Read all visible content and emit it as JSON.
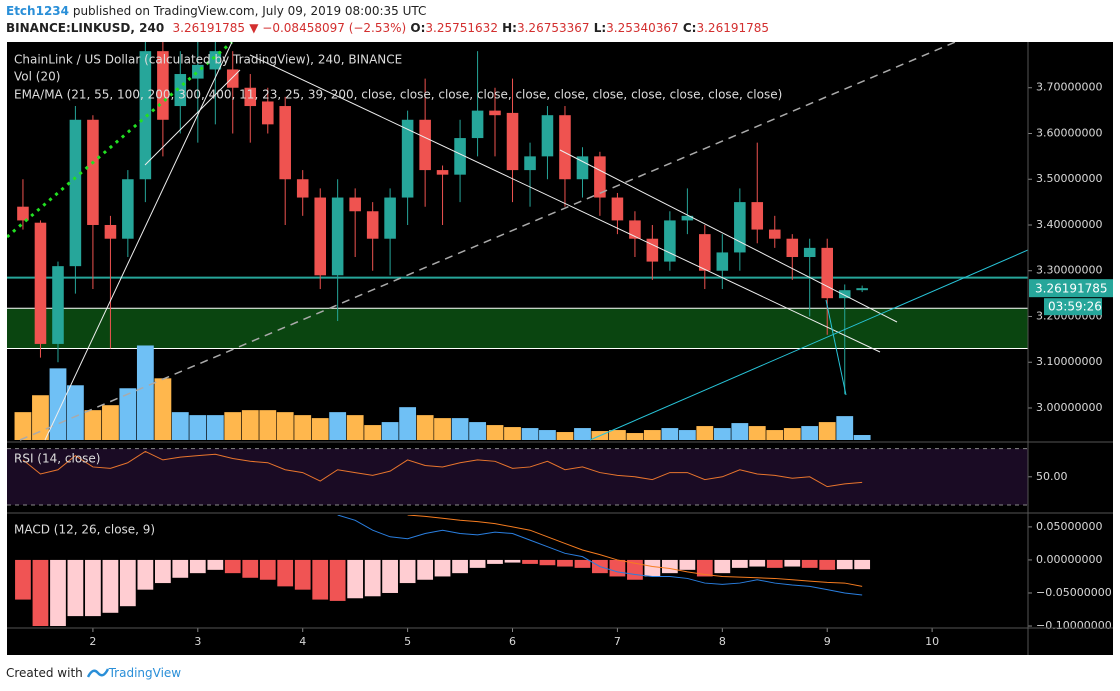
{
  "header": {
    "user": "Etch1234",
    "published": "published on TradingView.com, July 09, 2019 08:00:35 UTC",
    "symbol": "BINANCE:LINKUSD, 240",
    "last": "3.26191785",
    "change": "▼ −0.08458097 (−2.53%)",
    "ohlc": [
      {
        "label": "O:",
        "value": "3.25751632"
      },
      {
        "label": "H:",
        "value": "3.26753367"
      },
      {
        "label": "L:",
        "value": "3.25340367"
      },
      {
        "label": "C:",
        "value": "3.26191785"
      }
    ],
    "timer": "03:59:26"
  },
  "footer": {
    "created": "Created with",
    "brand": "TradingView"
  },
  "chart_data": [
    {
      "type": "candlestick",
      "title": "ChainLink / US Dollar (calculated by TradingView), 240, BINANCE",
      "volume_label": "Vol (20)",
      "ma_label": "EMA/MA (21, 55, 100, 200, 300, 400, 11, 23, 25, 39, 200, close, close, close, close, close, close, close, close, close, close, close)",
      "x": [
        1.333,
        1.5,
        1.667,
        1.833,
        2,
        2.167,
        2.333,
        2.5,
        2.667,
        2.833,
        3,
        3.167,
        3.333,
        3.5,
        3.667,
        3.833,
        4,
        4.167,
        4.333,
        4.5,
        4.667,
        4.833,
        5,
        5.167,
        5.333,
        5.5,
        5.667,
        5.833,
        6,
        6.167,
        6.333,
        6.5,
        6.667,
        6.833,
        7,
        7.167,
        7.333,
        7.5,
        7.667,
        7.833,
        8,
        8.167,
        8.333,
        8.5,
        8.667,
        8.833,
        9,
        9.167,
        9.333
      ],
      "open": [
        3.44,
        3.405,
        3.14,
        3.31,
        3.63,
        3.4,
        3.37,
        3.5,
        3.78,
        3.66,
        3.72,
        3.74,
        3.74,
        3.7,
        3.67,
        3.66,
        3.5,
        3.46,
        3.29,
        3.46,
        3.43,
        3.37,
        3.46,
        3.63,
        3.52,
        3.51,
        3.59,
        3.65,
        3.645,
        3.52,
        3.55,
        3.64,
        3.5,
        3.55,
        3.46,
        3.41,
        3.37,
        3.32,
        3.41,
        3.38,
        3.3,
        3.34,
        3.45,
        3.39,
        3.37,
        3.33,
        3.35,
        3.24,
        3.2575
      ],
      "high": [
        3.5,
        3.41,
        3.32,
        3.66,
        3.64,
        3.42,
        3.52,
        3.8,
        3.8,
        3.78,
        3.8,
        3.8,
        3.78,
        3.73,
        3.7,
        3.68,
        3.52,
        3.48,
        3.5,
        3.48,
        3.45,
        3.48,
        3.65,
        3.72,
        3.53,
        3.63,
        3.78,
        3.7,
        3.72,
        3.58,
        3.66,
        3.66,
        3.57,
        3.56,
        3.47,
        3.43,
        3.4,
        3.43,
        3.48,
        3.4,
        3.38,
        3.48,
        3.58,
        3.42,
        3.38,
        3.37,
        3.37,
        3.27,
        3.2675
      ],
      "low": [
        3.39,
        3.11,
        3.1,
        3.25,
        3.26,
        3.13,
        3.33,
        3.45,
        3.55,
        3.6,
        3.58,
        3.62,
        3.6,
        3.58,
        3.6,
        3.4,
        3.42,
        3.26,
        3.19,
        3.33,
        3.3,
        3.29,
        3.4,
        3.44,
        3.4,
        3.45,
        3.55,
        3.55,
        3.45,
        3.44,
        3.5,
        3.44,
        3.46,
        3.42,
        3.38,
        3.33,
        3.28,
        3.3,
        3.38,
        3.26,
        3.26,
        3.3,
        3.36,
        3.35,
        3.28,
        3.2,
        3.16,
        3.03,
        3.2534
      ],
      "close": [
        3.41,
        3.14,
        3.31,
        3.63,
        3.4,
        3.37,
        3.5,
        3.78,
        3.63,
        3.73,
        3.75,
        3.78,
        3.7,
        3.66,
        3.62,
        3.5,
        3.46,
        3.29,
        3.46,
        3.43,
        3.37,
        3.46,
        3.63,
        3.52,
        3.51,
        3.59,
        3.65,
        3.64,
        3.52,
        3.55,
        3.64,
        3.5,
        3.55,
        3.46,
        3.41,
        3.37,
        3.32,
        3.41,
        3.42,
        3.3,
        3.34,
        3.45,
        3.39,
        3.37,
        3.33,
        3.35,
        3.24,
        3.2575,
        3.2619
      ],
      "up_color": "#26a69a",
      "down_color": "#ef5350",
      "volume": [
        28,
        45,
        72,
        55,
        30,
        35,
        52,
        95,
        62,
        28,
        25,
        25,
        28,
        30,
        30,
        28,
        25,
        22,
        28,
        25,
        15,
        18,
        33,
        25,
        22,
        22,
        18,
        15,
        13,
        12,
        10,
        8,
        12,
        9,
        10,
        7,
        10,
        12,
        10,
        14,
        12,
        17,
        14,
        10,
        12,
        14,
        18,
        24,
        5
      ],
      "volume_lim": [
        0,
        400
      ],
      "volume_up_color": "#6fc0f5",
      "volume_down_color": "#ffb74d",
      "levels": [
        {
          "value": 3.285,
          "color": "#26a69a"
        },
        {
          "value": 3.218,
          "color": "#ffffff"
        },
        {
          "value": 3.13,
          "color": "#ffffff"
        }
      ],
      "zone": {
        "range": [
          3.13,
          3.218
        ],
        "color": "#0a4510"
      },
      "xlim": [
        1.181,
        10.914
      ],
      "xticks": [
        2,
        3,
        4,
        5,
        6,
        7,
        8,
        9,
        10
      ],
      "ylim": [
        2.93,
        3.8
      ],
      "yticks": [
        {
          "value": 3.0,
          "label": "3.00000000"
        },
        {
          "value": 3.1,
          "label": "3.10000000"
        },
        {
          "value": 3.2,
          "label": "3.20000000"
        },
        {
          "value": 3.3,
          "label": "3.30000000"
        },
        {
          "value": 3.4,
          "label": "3.40000000"
        },
        {
          "value": 3.5,
          "label": "3.50000000"
        },
        {
          "value": 3.6,
          "label": "3.60000000"
        },
        {
          "value": 3.7,
          "label": "3.70000000"
        }
      ]
    },
    {
      "type": "line",
      "title": "RSI (14, close)",
      "values": [
        62,
        52,
        55,
        65,
        57,
        56,
        60,
        68,
        62,
        64,
        65,
        66,
        63,
        61,
        60,
        55,
        53,
        47,
        55,
        53,
        51,
        54,
        62,
        58,
        57,
        60,
        62,
        61,
        56,
        57,
        61,
        55,
        57,
        53,
        51,
        50,
        48,
        53,
        53,
        48,
        50,
        55,
        52,
        51,
        49,
        50,
        43,
        45,
        46
      ],
      "color": "#e8752d",
      "background": "#1a0b24",
      "bands": [
        30,
        70
      ],
      "ylim": [
        25,
        74
      ],
      "yticks": [
        {
          "value": 50,
          "label": "50.00"
        }
      ]
    },
    {
      "type": "macd",
      "title": "MACD (12, 26, close, 9)",
      "histogram": [
        -0.06,
        -0.1,
        -0.1,
        -0.085,
        -0.085,
        -0.08,
        -0.07,
        -0.045,
        -0.035,
        -0.027,
        -0.02,
        -0.015,
        -0.02,
        -0.027,
        -0.03,
        -0.04,
        -0.045,
        -0.06,
        -0.062,
        -0.058,
        -0.055,
        -0.05,
        -0.035,
        -0.03,
        -0.025,
        -0.02,
        -0.012,
        -0.006,
        -0.004,
        -0.006,
        -0.008,
        -0.01,
        -0.012,
        -0.02,
        -0.025,
        -0.03,
        -0.025,
        -0.02,
        -0.015,
        -0.025,
        -0.02,
        -0.012,
        -0.01,
        -0.012,
        -0.01,
        -0.012,
        -0.015,
        -0.014,
        -0.014
      ],
      "falling_color": "#f05454",
      "rising_color": "#ffcdd2",
      "series": [
        {
          "color": "#2a7fe0",
          "values": [
            null,
            null,
            null,
            null,
            null,
            null,
            null,
            null,
            null,
            null,
            null,
            null,
            null,
            null,
            null,
            null,
            null,
            null,
            0.068,
            0.06,
            0.045,
            0.035,
            0.032,
            0.04,
            0.045,
            0.04,
            0.038,
            0.042,
            0.04,
            0.03,
            0.02,
            0.01,
            0.005,
            -0.01,
            -0.018,
            -0.022,
            -0.025,
            -0.025,
            -0.028,
            -0.035,
            -0.037,
            -0.035,
            -0.03,
            -0.035,
            -0.038,
            -0.04,
            -0.045,
            -0.05,
            -0.053
          ]
        },
        {
          "color": "#f57c20",
          "values": [
            null,
            null,
            null,
            null,
            null,
            null,
            null,
            null,
            null,
            null,
            null,
            null,
            null,
            null,
            null,
            null,
            null,
            null,
            null,
            null,
            null,
            null,
            0.068,
            0.066,
            0.063,
            0.06,
            0.058,
            0.055,
            0.05,
            0.045,
            0.035,
            0.025,
            0.015,
            0.008,
            0,
            -0.005,
            -0.01,
            -0.013,
            -0.018,
            -0.022,
            -0.025,
            -0.026,
            -0.027,
            -0.028,
            -0.03,
            -0.032,
            -0.034,
            -0.035,
            -0.04
          ]
        }
      ],
      "ylim": [
        -0.103,
        0.068
      ],
      "yticks": [
        {
          "value": 0.05,
          "label": "0.05000000"
        },
        {
          "value": 0,
          "label": "0.00000000"
        },
        {
          "value": -0.05,
          "label": "−0.05000000"
        },
        {
          "value": -0.1,
          "label": "−0.10000000"
        }
      ]
    }
  ]
}
